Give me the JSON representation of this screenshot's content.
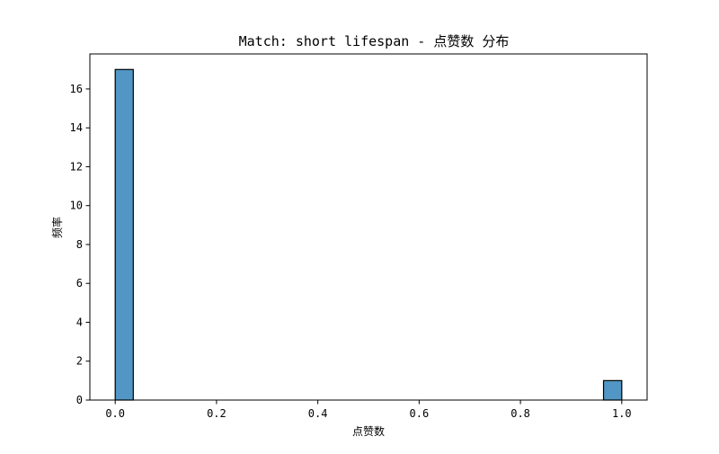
{
  "chart_data": {
    "type": "bar",
    "title": "Match: short lifespan - 点赞数 分布",
    "xlabel": "点赞数",
    "ylabel": "频率",
    "xlim": [
      -0.05,
      1.05
    ],
    "ylim": [
      0,
      17.8
    ],
    "x_ticks": [
      "0.0",
      "0.2",
      "0.4",
      "0.6",
      "0.8",
      "1.0"
    ],
    "y_ticks": [
      "0",
      "2",
      "4",
      "6",
      "8",
      "10",
      "12",
      "14",
      "16"
    ],
    "bins": [
      {
        "x0": 0.0,
        "x1": 0.0357,
        "count": 17
      },
      {
        "x0": 0.964,
        "x1": 1.0,
        "count": 1
      }
    ],
    "grid": false,
    "bar_color": "#5196c4"
  }
}
